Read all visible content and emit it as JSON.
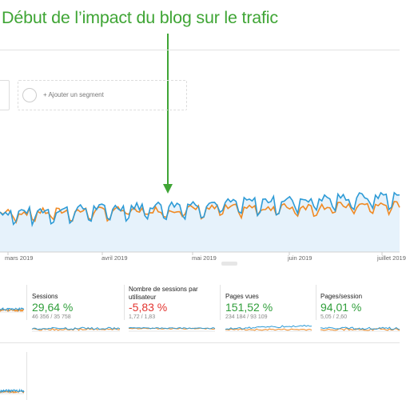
{
  "annotation": {
    "title": "Début de l’impact du blog sur le trafic",
    "color": "#3fa535"
  },
  "segments": {
    "add_label": "+ Ajouter un segment"
  },
  "timeline": {
    "x_labels": [
      "mars 2019",
      "avril 2019",
      "mai 2019",
      "juin 2019",
      "juillet 2019"
    ],
    "series_colors": {
      "current": "#2e9bd6",
      "previous": "#f08a24"
    }
  },
  "metrics": [
    {
      "name": "Sessions",
      "value": "29,64 %",
      "sub": "46 356 / 35 758",
      "trend": "pos"
    },
    {
      "name": "Nombre de sessions par utilisateur",
      "value": "-5,83 %",
      "sub": "1,72 / 1,83",
      "trend": "neg"
    },
    {
      "name": "Pages vues",
      "value": "151,52 %",
      "sub": "234 184 / 93 109",
      "trend": "pos"
    },
    {
      "name": "Pages/session",
      "value": "94,01 %",
      "sub": "5,05 / 2,60",
      "trend": "pos"
    }
  ]
}
